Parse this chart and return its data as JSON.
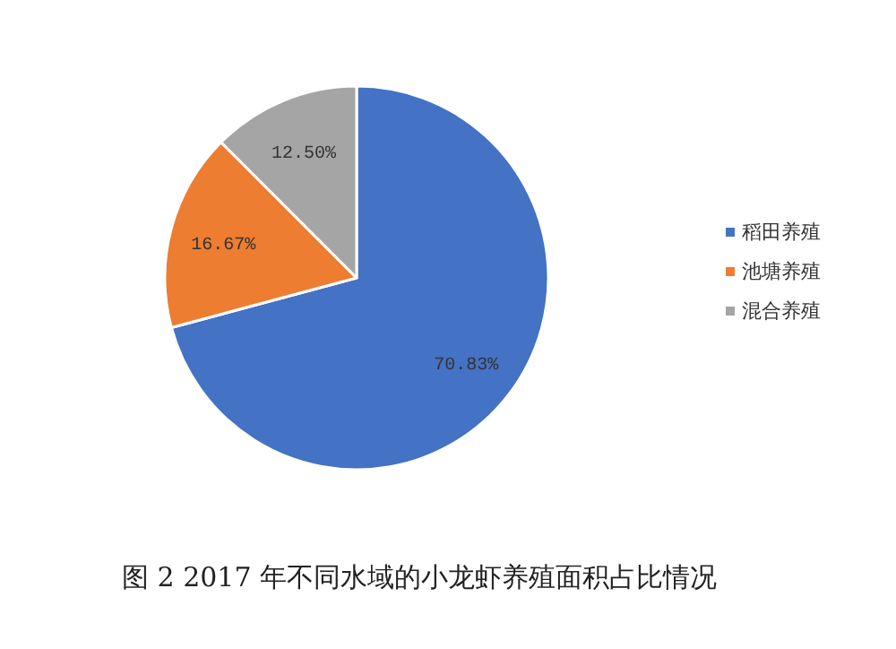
{
  "chart_data": {
    "type": "pie",
    "categories": [
      "稻田养殖",
      "池塘养殖",
      "混合养殖"
    ],
    "values": [
      70.83,
      16.67,
      12.5
    ],
    "colors": [
      "#4472c4",
      "#ed7d31",
      "#a5a5a5"
    ],
    "value_labels": [
      "70.83%",
      "16.67%",
      "12.50%"
    ],
    "legend": "right",
    "annotations": [
      "图 2 2017 年不同水域的小龙虾养殖面积占比情况"
    ]
  }
}
